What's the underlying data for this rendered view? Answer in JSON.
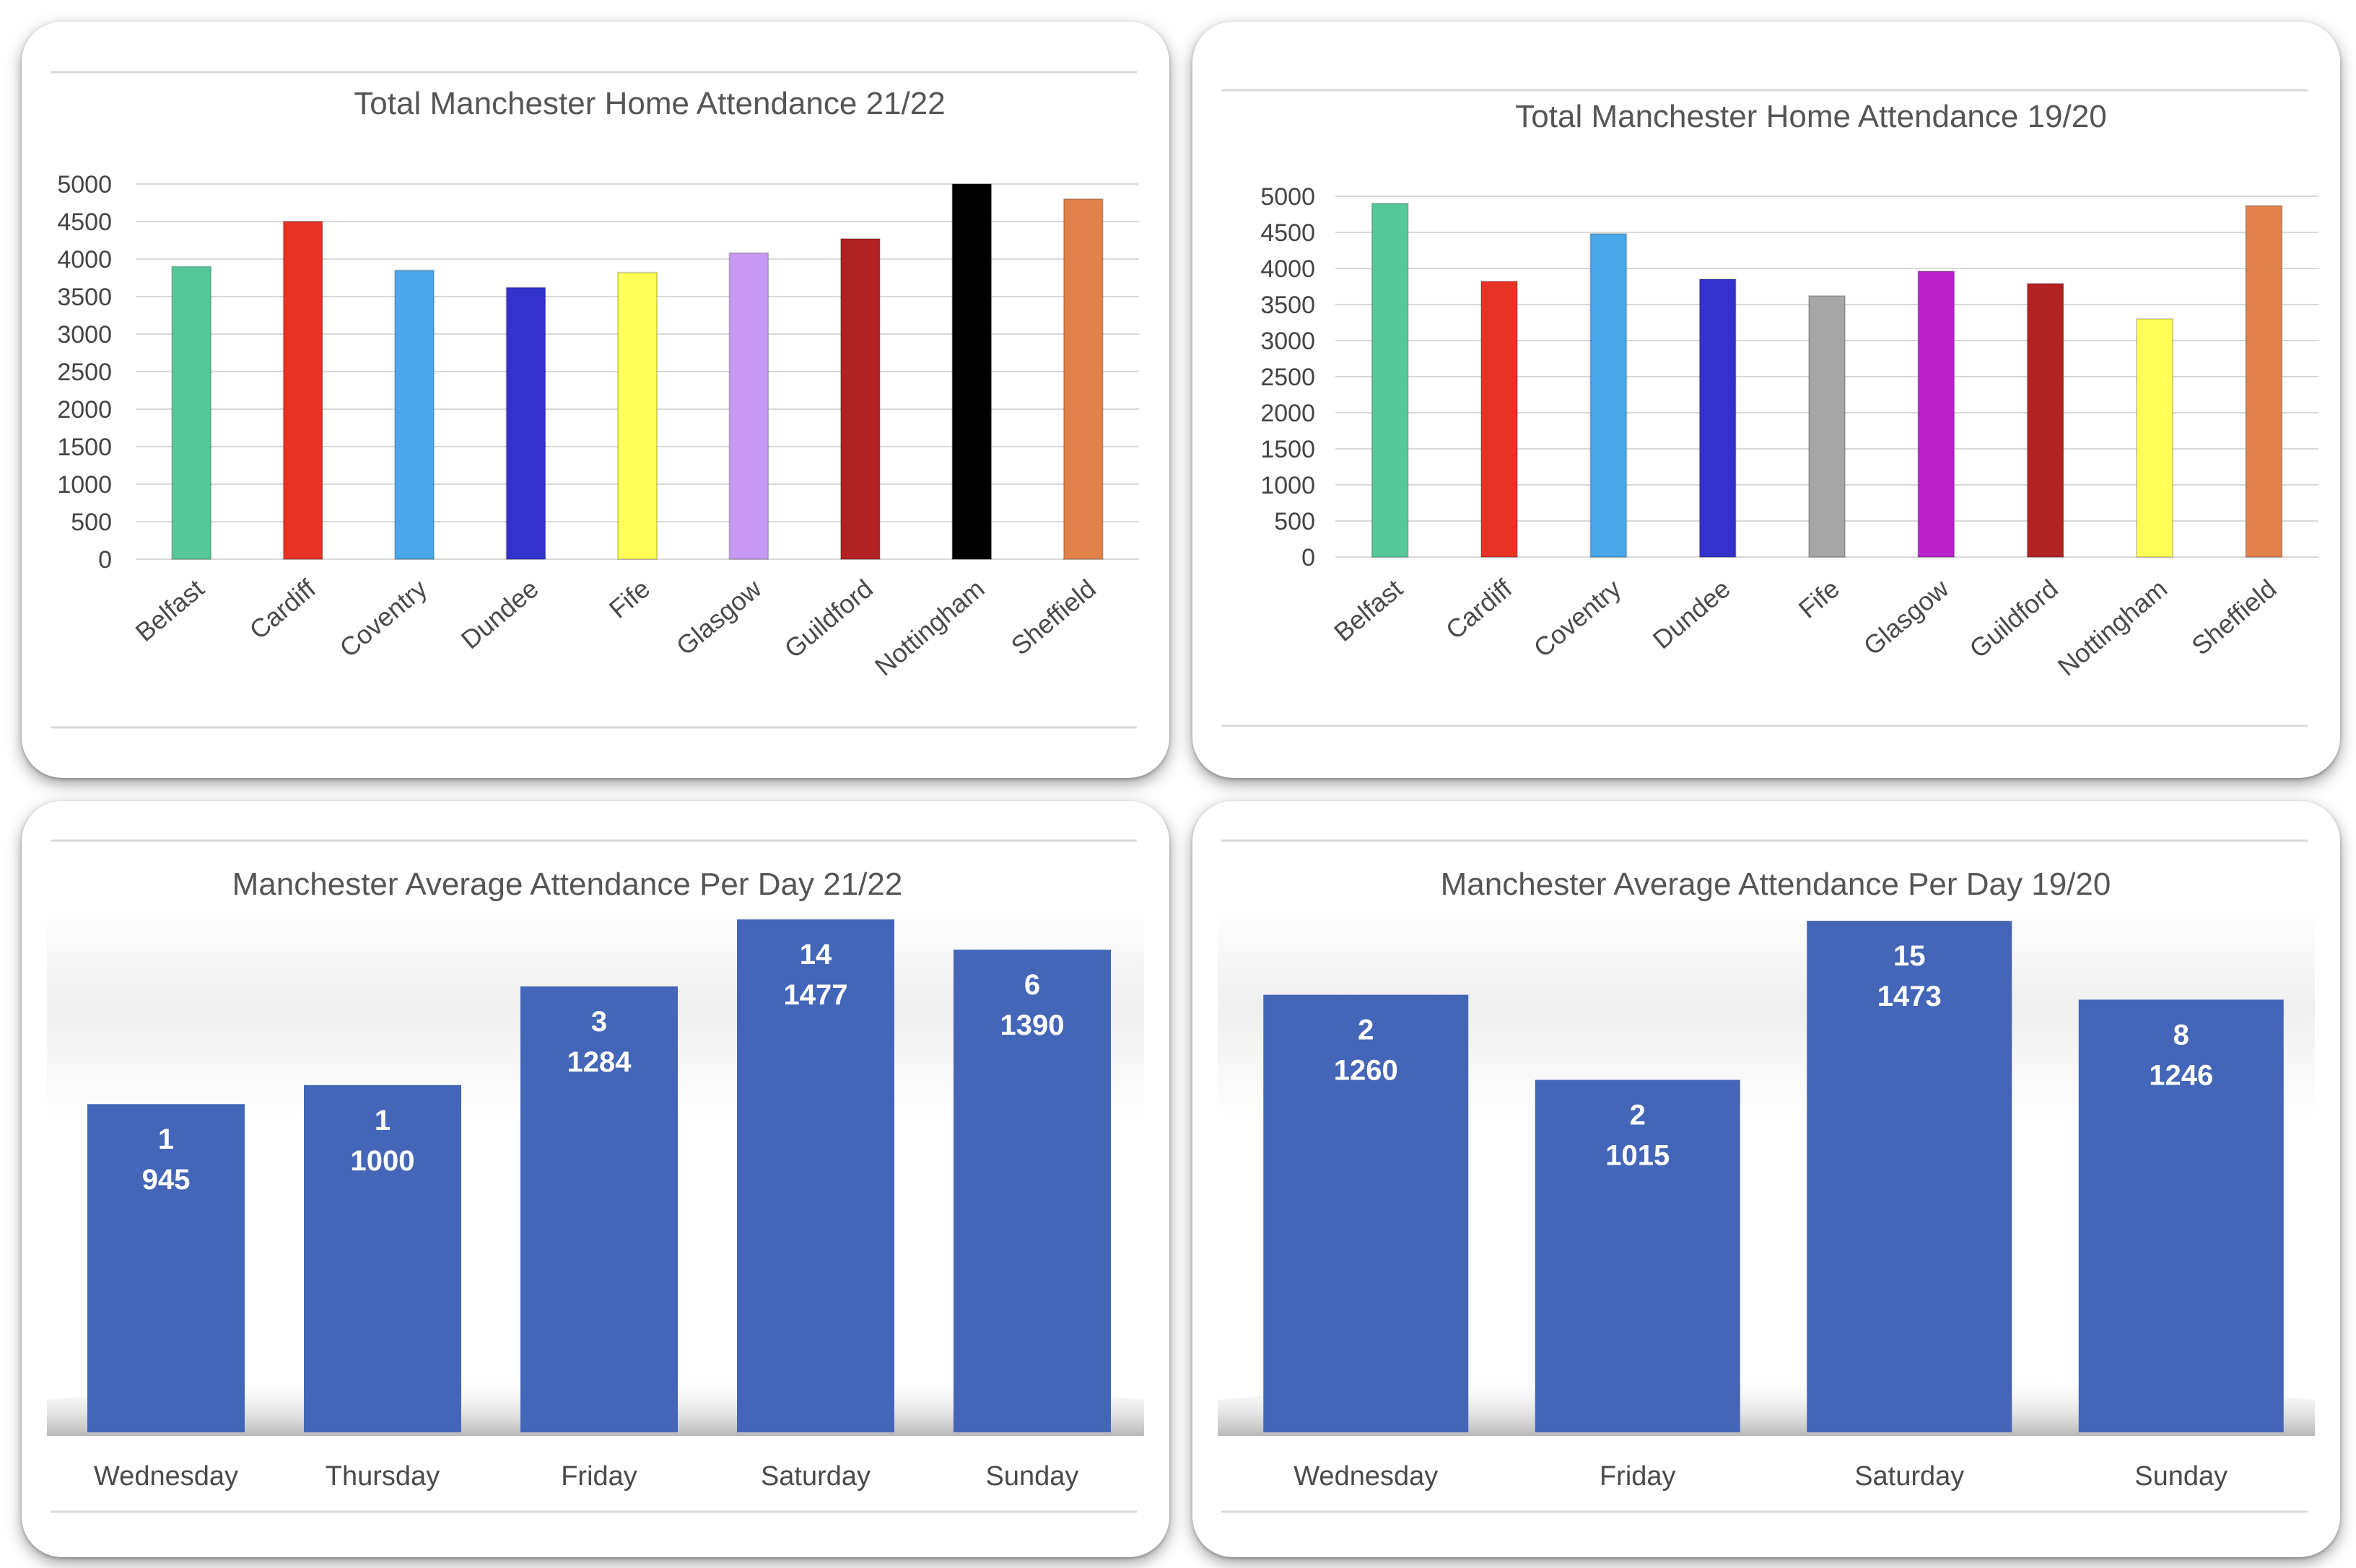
{
  "chart_data": [
    {
      "type": "bar",
      "title": "Total Manchester Home Attendance 21/22",
      "categories": [
        "Belfast",
        "Cardiff",
        "Coventry",
        "Dundee",
        "Fife",
        "Glasgow",
        "Guildford",
        "Nottingham",
        "Sheffield"
      ],
      "values": [
        3900,
        4500,
        3850,
        3620,
        3820,
        4080,
        4270,
        5000,
        4800
      ],
      "colors": [
        "#55c89a",
        "#e63326",
        "#4aa8e8",
        "#3333cc",
        "#ffff55",
        "#c799f5",
        "#b22222",
        "#000000",
        "#e0824a"
      ],
      "ylim": [
        0,
        5000
      ],
      "yticks": [
        0,
        500,
        1000,
        1500,
        2000,
        2500,
        3000,
        3500,
        4000,
        4500,
        5000
      ],
      "xlabel": "",
      "ylabel": ""
    },
    {
      "type": "bar",
      "title": "Total Manchester Home Attendance 19/20",
      "categories": [
        "Belfast",
        "Cardiff",
        "Coventry",
        "Dundee",
        "Fife",
        "Glasgow",
        "Guildford",
        "Nottingham",
        "Sheffield"
      ],
      "values": [
        4900,
        3820,
        4480,
        3850,
        3620,
        3960,
        3790,
        3300,
        4870
      ],
      "colors": [
        "#55c89a",
        "#e63326",
        "#4aa8e8",
        "#3333cc",
        "#a6a6a6",
        "#bb22cc",
        "#b22222",
        "#ffff55",
        "#e0824a"
      ],
      "ylim": [
        0,
        5000
      ],
      "yticks": [
        0,
        500,
        1000,
        1500,
        2000,
        2500,
        3000,
        3500,
        4000,
        4500,
        5000
      ],
      "xlabel": "",
      "ylabel": ""
    },
    {
      "type": "bar",
      "title": "Manchester Average Attendance Per Day 21/22",
      "categories": [
        "Wednesday",
        "Thursday",
        "Friday",
        "Saturday",
        "Sunday"
      ],
      "values": [
        945,
        1000,
        1284,
        1477,
        1390
      ],
      "games": [
        1,
        1,
        3,
        14,
        6
      ],
      "color": "#4466b8",
      "ylim": [
        0,
        1600
      ],
      "xlabel": "",
      "ylabel": ""
    },
    {
      "type": "bar",
      "title": "Manchester Average Attendance Per Day 19/20",
      "categories": [
        "Wednesday",
        "Friday",
        "Saturday",
        "Sunday"
      ],
      "values": [
        1260,
        1015,
        1473,
        1246
      ],
      "games": [
        2,
        2,
        15,
        8
      ],
      "color": "#4466b8",
      "ylim": [
        0,
        1600
      ],
      "xlabel": "",
      "ylabel": ""
    }
  ]
}
